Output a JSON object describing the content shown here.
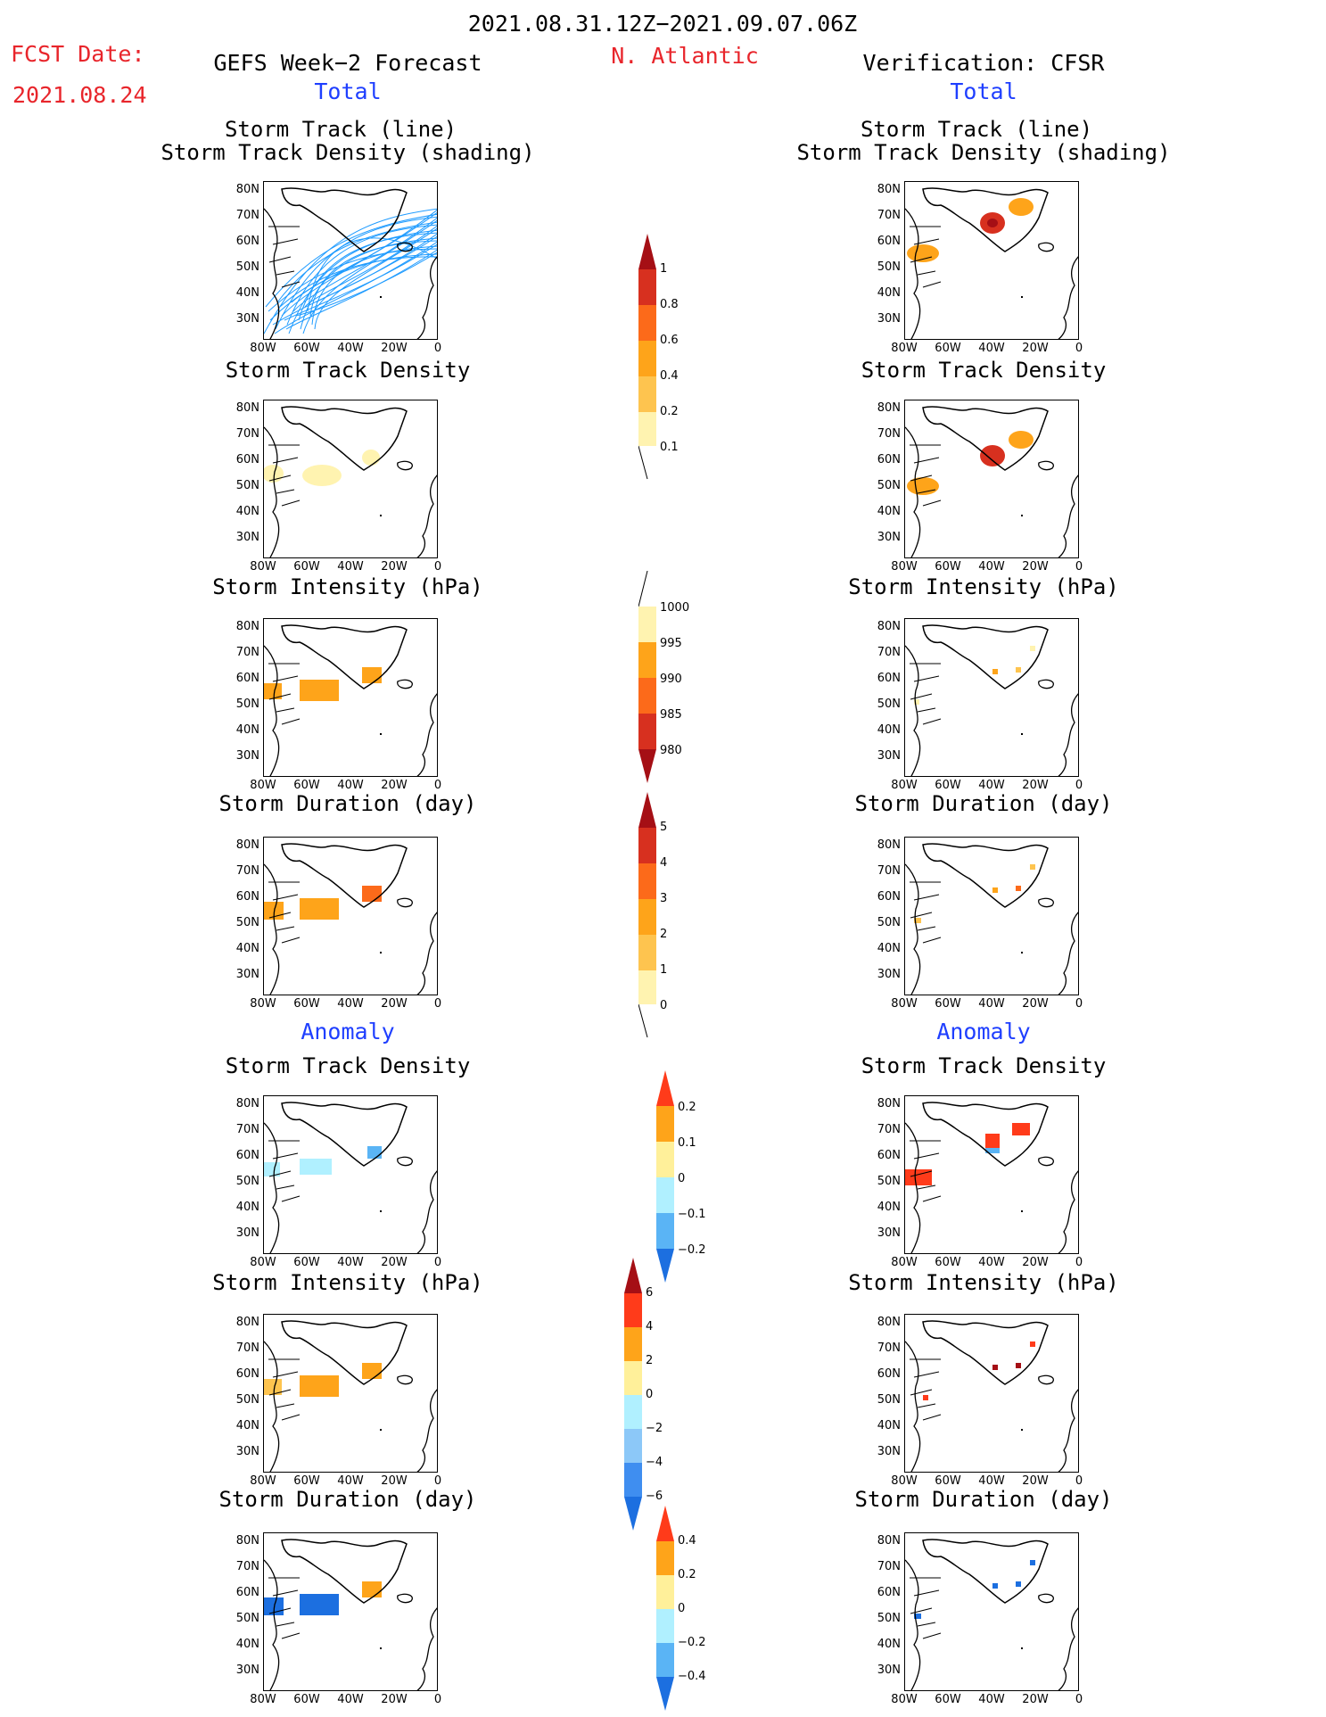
{
  "header": {
    "date_range": "2021.08.31.12Z−2021.09.07.06Z",
    "fcst_label": "FCST Date:",
    "fcst_date": "2021.08.24",
    "left_title": "GEFS Week−2 Forecast",
    "center_title": "N. Atlantic",
    "right_title": "Verification: CFSR",
    "total_label": "Total",
    "anomaly_label": "Anomaly"
  },
  "axes": {
    "lat_labels": [
      "80N",
      "70N",
      "60N",
      "50N",
      "40N",
      "30N"
    ],
    "lon_labels": [
      "80W",
      "60W",
      "40W",
      "20W",
      "0"
    ]
  },
  "panels": {
    "track_line_1": "Storm Track (line)",
    "track_line_2": "Storm Track Density (shading)",
    "density": "Storm Track Density",
    "intensity": "Storm Intensity (hPa)",
    "duration": "Storm Duration (day)"
  },
  "colorbars": {
    "density": [
      "1",
      "0.8",
      "0.6",
      "0.4",
      "0.2",
      "0.1"
    ],
    "intensity": [
      "1000",
      "995",
      "990",
      "985",
      "980"
    ],
    "duration": [
      "5",
      "4",
      "3",
      "2",
      "1",
      "0"
    ],
    "density_anom": [
      "0.2",
      "0.1",
      "0",
      "−0.1",
      "−0.2"
    ],
    "intensity_anom": [
      "6",
      "4",
      "2",
      "0",
      "−2",
      "−4",
      "−6"
    ],
    "duration_anom": [
      "0.4",
      "0.2",
      "0",
      "−0.2",
      "−0.4"
    ]
  },
  "colors": {
    "track": "#1e9bff",
    "red_text": "#e8252b",
    "blue_text": "#1f3fff"
  }
}
